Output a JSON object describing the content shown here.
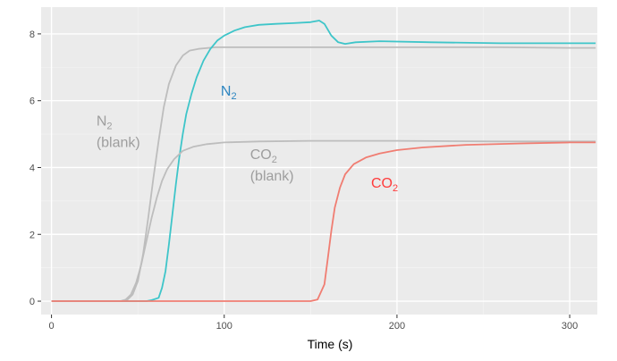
{
  "chart_data": {
    "type": "line",
    "title": "",
    "xlabel": "Time (s)",
    "ylabel": "",
    "xlim": [
      -6,
      316
    ],
    "ylim": [
      -0.4,
      8.8
    ],
    "xticks": [
      0,
      100,
      200,
      300
    ],
    "yticks": [
      0,
      2,
      4,
      6,
      8
    ],
    "grid": true,
    "legend": "none",
    "colors": {
      "panel": "#ebebeb",
      "grid_major": "#ffffff",
      "grid_minor": "#f4f4f4",
      "blank": "#bdbdbd",
      "n2": "#3ec5c9",
      "co2": "#f07d72"
    },
    "series": [
      {
        "name": "N2 (blank)",
        "color": "#bdbdbd",
        "points": [
          [
            0,
            0
          ],
          [
            40,
            0
          ],
          [
            44,
            0.05
          ],
          [
            47,
            0.2
          ],
          [
            50,
            0.6
          ],
          [
            53,
            1.4
          ],
          [
            56,
            2.5
          ],
          [
            59,
            3.7
          ],
          [
            62,
            4.8
          ],
          [
            65,
            5.8
          ],
          [
            68,
            6.5
          ],
          [
            72,
            7.05
          ],
          [
            76,
            7.35
          ],
          [
            80,
            7.5
          ],
          [
            85,
            7.55
          ],
          [
            95,
            7.6
          ],
          [
            130,
            7.6
          ],
          [
            200,
            7.6
          ],
          [
            260,
            7.6
          ],
          [
            300,
            7.58
          ],
          [
            315,
            7.58
          ]
        ]
      },
      {
        "name": "N2",
        "color": "#3ec5c9",
        "points": [
          [
            0,
            0
          ],
          [
            55,
            0
          ],
          [
            58,
            0.03
          ],
          [
            62,
            0.1
          ],
          [
            64,
            0.4
          ],
          [
            66,
            0.9
          ],
          [
            68,
            1.7
          ],
          [
            70,
            2.6
          ],
          [
            72,
            3.5
          ],
          [
            74,
            4.3
          ],
          [
            76,
            5.0
          ],
          [
            78,
            5.6
          ],
          [
            81,
            6.2
          ],
          [
            84,
            6.7
          ],
          [
            88,
            7.2
          ],
          [
            92,
            7.55
          ],
          [
            96,
            7.8
          ],
          [
            100,
            7.95
          ],
          [
            106,
            8.1
          ],
          [
            112,
            8.2
          ],
          [
            120,
            8.27
          ],
          [
            130,
            8.3
          ],
          [
            140,
            8.32
          ],
          [
            150,
            8.35
          ],
          [
            155,
            8.4
          ],
          [
            158,
            8.3
          ],
          [
            162,
            7.95
          ],
          [
            166,
            7.75
          ],
          [
            170,
            7.7
          ],
          [
            176,
            7.75
          ],
          [
            190,
            7.78
          ],
          [
            220,
            7.75
          ],
          [
            260,
            7.72
          ],
          [
            300,
            7.72
          ],
          [
            315,
            7.72
          ]
        ]
      },
      {
        "name": "CO2 (blank)",
        "color": "#bdbdbd",
        "points": [
          [
            0,
            0
          ],
          [
            40,
            0
          ],
          [
            43,
            0.05
          ],
          [
            46,
            0.2
          ],
          [
            49,
            0.55
          ],
          [
            52,
            1.1
          ],
          [
            55,
            1.8
          ],
          [
            58,
            2.5
          ],
          [
            61,
            3.1
          ],
          [
            64,
            3.6
          ],
          [
            67,
            3.95
          ],
          [
            71,
            4.25
          ],
          [
            76,
            4.5
          ],
          [
            82,
            4.62
          ],
          [
            90,
            4.7
          ],
          [
            100,
            4.75
          ],
          [
            120,
            4.78
          ],
          [
            150,
            4.8
          ],
          [
            200,
            4.8
          ],
          [
            260,
            4.78
          ],
          [
            300,
            4.78
          ],
          [
            315,
            4.78
          ]
        ]
      },
      {
        "name": "CO2",
        "color": "#f07d72",
        "points": [
          [
            0,
            0
          ],
          [
            150,
            0
          ],
          [
            154,
            0.05
          ],
          [
            158,
            0.5
          ],
          [
            160,
            1.3
          ],
          [
            162,
            2.1
          ],
          [
            164,
            2.8
          ],
          [
            167,
            3.4
          ],
          [
            170,
            3.8
          ],
          [
            175,
            4.1
          ],
          [
            182,
            4.3
          ],
          [
            190,
            4.42
          ],
          [
            200,
            4.52
          ],
          [
            215,
            4.6
          ],
          [
            240,
            4.68
          ],
          [
            270,
            4.72
          ],
          [
            300,
            4.75
          ],
          [
            315,
            4.75
          ]
        ]
      }
    ],
    "annotations": [
      {
        "text": "N",
        "sub": "2",
        "line2": "",
        "x": 98,
        "y": 6.15,
        "color": "#2e86c1"
      },
      {
        "text": "N",
        "sub": "2",
        "line2": "(blank)",
        "x": 26,
        "y": 5.25,
        "color": "#9e9e9e"
      },
      {
        "text": "CO",
        "sub": "2",
        "line2": "(blank)",
        "x": 115,
        "y": 4.25,
        "color": "#9e9e9e"
      },
      {
        "text": "CO",
        "sub": "2",
        "line2": "",
        "x": 185,
        "y": 3.4,
        "color": "#ff3b3b"
      }
    ]
  }
}
